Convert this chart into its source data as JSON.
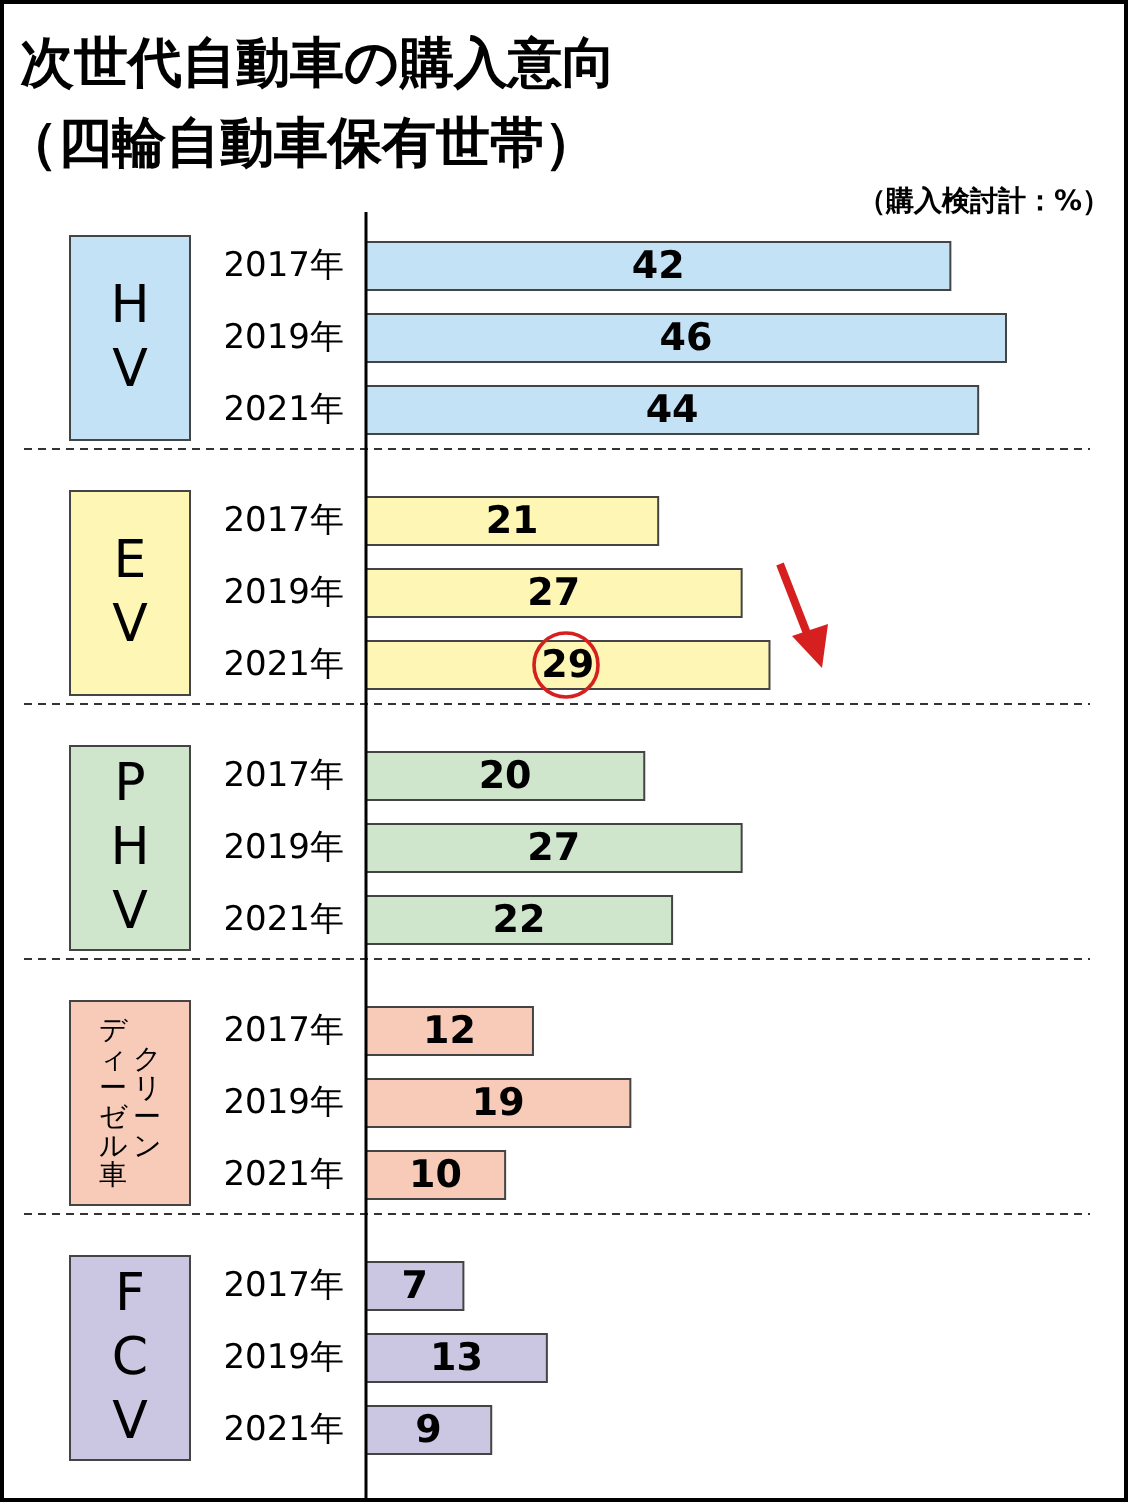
{
  "chart_data": {
    "type": "bar",
    "orientation": "horizontal",
    "title": "次世代自動車の購入意向",
    "subtitle": "（四輪自動車保有世帯）",
    "annotations": [
      "（購入検討計：%）",
      "HV",
      "EV",
      "PHV",
      "クリーン",
      "ディーゼル車",
      "FCV"
    ],
    "categories": [
      "2017年",
      "2019年",
      "2021年",
      "2017年",
      "2019年",
      "2021年",
      "2017年",
      "2019年",
      "2021年",
      "2017年",
      "2019年",
      "2021年",
      "2017年",
      "2019年",
      "2021年"
    ],
    "values": [
      42,
      46,
      44,
      21,
      27,
      29,
      20,
      27,
      22,
      12,
      19,
      10,
      7,
      13,
      9
    ],
    "colors": [
      "#c4e2f6",
      "#c4e2f6",
      "#c4e2f6",
      "#fdf6b4",
      "#fdf6b4",
      "#fdf6b4",
      "#cfe6cd",
      "#cfe6cd",
      "#cfe6cd",
      "#f8cbb8",
      "#f8cbb8",
      "#f8cbb8",
      "#cbc6e2",
      "#cbc6e2",
      "#cbc6e2"
    ],
    "data_labels": true
  }
}
